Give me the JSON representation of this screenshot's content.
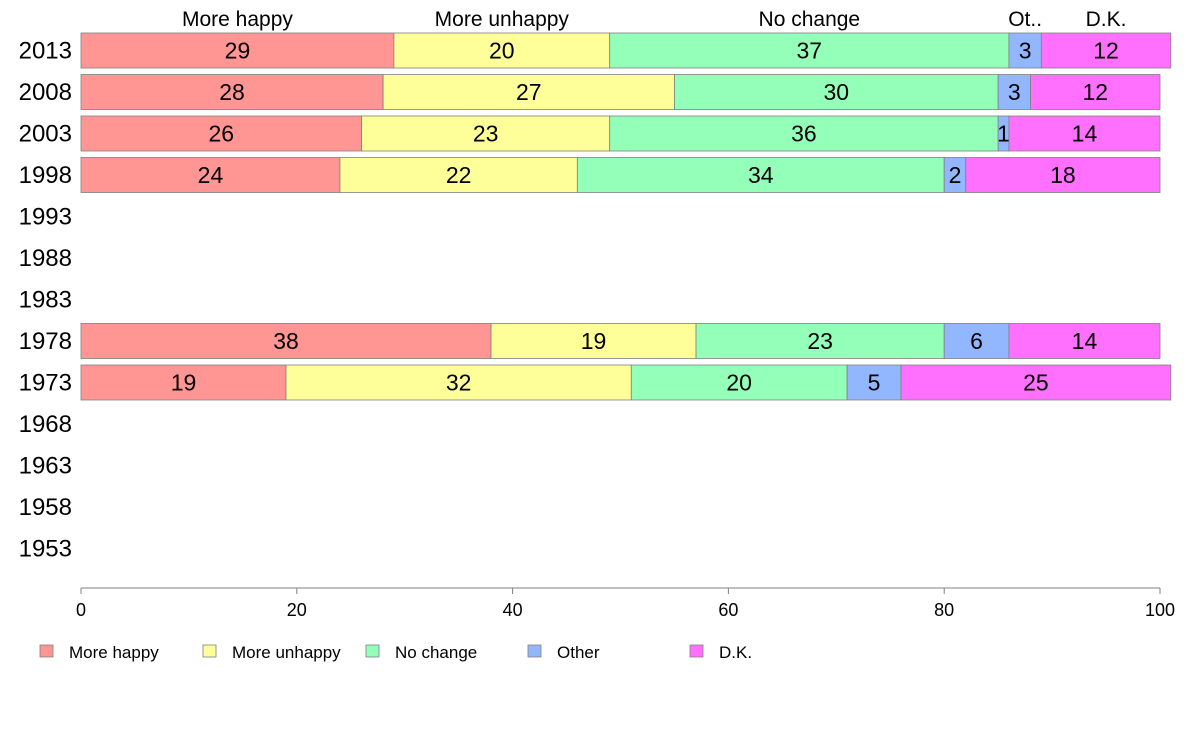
{
  "chart_data": {
    "type": "bar",
    "orientation": "horizontal",
    "stacked": true,
    "categories": [
      "2013",
      "2008",
      "2003",
      "1998",
      "1993",
      "1988",
      "1983",
      "1978",
      "1973",
      "1968",
      "1963",
      "1958",
      "1953"
    ],
    "series": [
      {
        "name": "More happy",
        "color": "#ff9693",
        "values": [
          29,
          28,
          26,
          24,
          null,
          null,
          null,
          38,
          19,
          null,
          null,
          null,
          null
        ]
      },
      {
        "name": "More unhappy",
        "color": "#ffff99",
        "values": [
          20,
          27,
          23,
          22,
          null,
          null,
          null,
          19,
          32,
          null,
          null,
          null,
          null
        ]
      },
      {
        "name": "No change",
        "color": "#94ffb8",
        "values": [
          37,
          30,
          36,
          34,
          null,
          null,
          null,
          23,
          20,
          null,
          null,
          null,
          null
        ]
      },
      {
        "name": "Other",
        "color": "#93b7ff",
        "values": [
          3,
          3,
          1,
          2,
          null,
          null,
          null,
          6,
          5,
          null,
          null,
          null,
          null
        ]
      },
      {
        "name": "D.K.",
        "color": "#ff70ff",
        "values": [
          12,
          12,
          14,
          18,
          null,
          null,
          null,
          14,
          25,
          null,
          null,
          null,
          null
        ]
      }
    ],
    "segment_headers": [
      "More happy",
      "More unhappy",
      "No change",
      "Ot..",
      "D.K."
    ],
    "xlim": [
      0,
      100
    ],
    "xticks": [
      0,
      20,
      40,
      60,
      80,
      100
    ],
    "grid": false,
    "legend_position": "bottom"
  }
}
